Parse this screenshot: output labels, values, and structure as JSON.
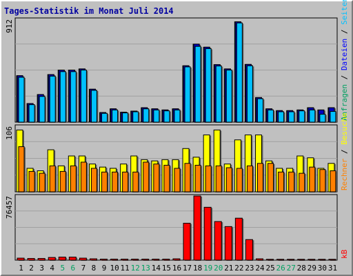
{
  "chart_data": {
    "type": "bar",
    "title": "Tages-Statistik im Monat Juli 2014",
    "categories": [
      "1",
      "2",
      "3",
      "4",
      "5",
      "6",
      "7",
      "8",
      "9",
      "10",
      "11",
      "12",
      "13",
      "14",
      "15",
      "16",
      "17",
      "18",
      "19",
      "20",
      "21",
      "22",
      "23",
      "24",
      "25",
      "26",
      "27",
      "28",
      "29",
      "30",
      "31"
    ],
    "weekend_days": [
      "5",
      "6",
      "12",
      "13",
      "19",
      "20",
      "26",
      "27"
    ],
    "colors": {
      "anfragen": "#0080c0",
      "dateien": "#0000c0",
      "seiten": "#00c0ff",
      "besuche": "#ffff00",
      "rechner": "#ff8000",
      "kb": "#ff0000",
      "weekday_label": "#000000",
      "weekend_label": "#00a060",
      "title": "#0000a0",
      "grid": "#a0a0a0"
    },
    "panels": [
      {
        "name": "hits",
        "max_label": "912",
        "right_legend": [
          {
            "text": "Anfragen",
            "color": "#00a060"
          },
          {
            "text": " / ",
            "color": "#000000"
          },
          {
            "text": "Dateien",
            "color": "#0000ff"
          },
          {
            "text": " / ",
            "color": "#000000"
          },
          {
            "text": "Seiten",
            "color": "#00c0ff"
          }
        ],
        "series": [
          {
            "name": "Anfragen",
            "values": [
              412,
              165,
              245,
              422,
              462,
              462,
              472,
              292,
              85,
              118,
              88,
              98,
              128,
              118,
              108,
              118,
              500,
              692,
              665,
              510,
              472,
              890,
              512,
              218,
              118,
              102,
              102,
              108,
              128,
              108,
              128
            ]
          },
          {
            "name": "Dateien",
            "values": [
              412,
              165,
              245,
              422,
              462,
              462,
              472,
              292,
              85,
              118,
              88,
              98,
              128,
              118,
              108,
              118,
              500,
              692,
              665,
              510,
              472,
              890,
              512,
              218,
              118,
              102,
              102,
              108,
              128,
              108,
              128
            ]
          },
          {
            "name": "Seiten",
            "values": [
              398,
              155,
              228,
              408,
              448,
              448,
              462,
              282,
              78,
              108,
              82,
              92,
              118,
              108,
              100,
              108,
              490,
              672,
              652,
              498,
              462,
              880,
              500,
              208,
              108,
              92,
              92,
              100,
              108,
              70,
              95
            ]
          }
        ],
        "ylim": [
          0,
          912
        ]
      },
      {
        "name": "visits",
        "max_label": "106",
        "right_legend": [
          {
            "text": "Rechner",
            "color": "#ff8000"
          },
          {
            "text": " / ",
            "color": "#000000"
          },
          {
            "text": "Besuche",
            "color": "#ffff00"
          }
        ],
        "series": [
          {
            "name": "Besuche",
            "values": [
              100,
              38,
              34,
              68,
              42,
              58,
              58,
              45,
              40,
              38,
              45,
              58,
              52,
              50,
              52,
              52,
              70,
              56,
              92,
              100,
              45,
              84,
              92,
              92,
              50,
              38,
              38,
              58,
              55,
              38,
              46
            ]
          },
          {
            "name": "Rechner",
            "values": [
              73,
              33,
              30,
              42,
              33,
              42,
              48,
              38,
              32,
              32,
              32,
              32,
              48,
              45,
              43,
              38,
              46,
              43,
              42,
              42,
              39,
              38,
              42,
              46,
              46,
              32,
              32,
              30,
              40,
              36,
              34
            ]
          }
        ],
        "ylim": [
          0,
          106
        ]
      },
      {
        "name": "kb",
        "max_label": "76457",
        "right_legend": [
          {
            "text": "kB",
            "color": "#ff0000"
          }
        ],
        "series": [
          {
            "name": "kB",
            "values": [
              2400,
              2000,
              2000,
              3200,
              3600,
              3600,
              2400,
              1600,
              1200,
              1200,
              1200,
              1200,
              1200,
              1200,
              1200,
              1600,
              44000,
              76457,
              63000,
              46000,
              40000,
              50000,
              24500,
              1600,
              1000,
              1000,
              1000,
              1000,
              1000,
              1000,
              1000
            ]
          }
        ],
        "ylim": [
          0,
          76457
        ]
      }
    ]
  }
}
